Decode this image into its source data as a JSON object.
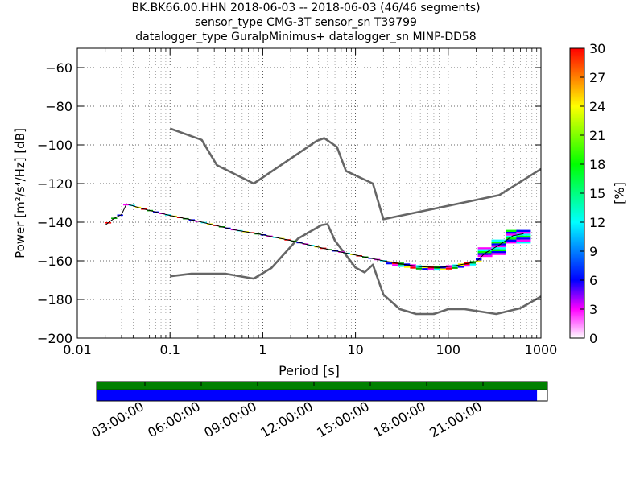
{
  "title_lines": [
    "BK.BK66.00.HHN   2018-06-03 -- 2018-06-03  (46/46 segments)",
    "sensor_type CMG-3T sensor_sn T39799",
    "datalogger_type GuralpMinimus+ datalogger_sn MINP-DD58"
  ],
  "chart_data": {
    "type": "heatmap",
    "xlabel": "Period [s]",
    "ylabel": "Power [m²/s⁴/Hz] [dB]",
    "x_scale": "log",
    "xlim": [
      0.01,
      1000
    ],
    "ylim": [
      -200,
      -50
    ],
    "x_ticks": [
      {
        "value": 0.01,
        "label": "0.01"
      },
      {
        "value": 0.1,
        "label": "0.1"
      },
      {
        "value": 1,
        "label": "1"
      },
      {
        "value": 10,
        "label": "10"
      },
      {
        "value": 100,
        "label": "100"
      },
      {
        "value": 1000,
        "label": "1000"
      }
    ],
    "y_ticks": [
      -60,
      -80,
      -100,
      -120,
      -140,
      -160,
      -180,
      -200
    ],
    "grid": true,
    "colorbar": {
      "label": "[%]",
      "min": 0,
      "max": 30,
      "ticks": [
        0,
        3,
        6,
        9,
        12,
        15,
        18,
        21,
        24,
        27,
        30
      ],
      "colors": [
        "#ffffff",
        "#ff00ff",
        "#0000ff",
        "#00ffff",
        "#00ff00",
        "#ffff00",
        "#ff8000",
        "#ff0000"
      ]
    },
    "noise_models": [
      {
        "points": [
          [
            0.1,
            -91.5
          ],
          [
            0.22,
            -97.4
          ],
          [
            0.32,
            -110.5
          ],
          [
            0.8,
            -120
          ],
          [
            3.8,
            -98
          ],
          [
            4.6,
            -96.5
          ],
          [
            6.3,
            -101
          ],
          [
            7.9,
            -113.5
          ],
          [
            15.4,
            -120
          ],
          [
            20,
            -138.5
          ],
          [
            354.8,
            -126
          ],
          [
            1000,
            -112.5
          ]
        ]
      },
      {
        "points": [
          [
            0.1,
            -168
          ],
          [
            0.17,
            -166.7
          ],
          [
            0.4,
            -166.7
          ],
          [
            0.8,
            -169.2
          ],
          [
            1.24,
            -163.7
          ],
          [
            2.4,
            -148.5
          ],
          [
            4.3,
            -141.5
          ],
          [
            5,
            -141
          ],
          [
            6,
            -149.5
          ],
          [
            10,
            -163.5
          ],
          [
            12.5,
            -166
          ],
          [
            15.4,
            -162
          ],
          [
            20,
            -177.5
          ],
          [
            30,
            -185
          ],
          [
            45,
            -187.5
          ],
          [
            70,
            -187.5
          ],
          [
            100,
            -185
          ],
          [
            150,
            -185
          ],
          [
            330,
            -187.5
          ],
          [
            600,
            -184.5
          ],
          [
            1000,
            -178.5
          ]
        ]
      }
    ],
    "psd_mode": {
      "points": [
        [
          0.02,
          -141.5
        ],
        [
          0.025,
          -138
        ],
        [
          0.03,
          -136
        ],
        [
          0.034,
          -130.5
        ],
        [
          0.05,
          -133
        ],
        [
          0.1,
          -136.5
        ],
        [
          0.2,
          -139.5
        ],
        [
          0.5,
          -144
        ],
        [
          1,
          -146.5
        ],
        [
          2,
          -149.5
        ],
        [
          5,
          -154
        ],
        [
          10,
          -157
        ],
        [
          20,
          -160
        ],
        [
          30,
          -161.5
        ],
        [
          50,
          -163
        ],
        [
          80,
          -163.5
        ],
        [
          120,
          -162.5
        ],
        [
          200,
          -160.5
        ],
        [
          250,
          -156
        ],
        [
          350,
          -152
        ],
        [
          500,
          -147
        ],
        [
          650,
          -146
        ]
      ]
    },
    "psd_spread": [
      {
        "x": 250,
        "low": -158,
        "high": -153
      },
      {
        "x": 350,
        "low": -157,
        "high": -149
      },
      {
        "x": 500,
        "low": -151,
        "high": -144
      },
      {
        "x": 650,
        "low": -151,
        "high": -144
      }
    ]
  },
  "coverage_bar": {
    "tick_labels": [
      "03:00:00",
      "06:00:00",
      "09:00:00",
      "12:00:00",
      "15:00:00",
      "18:00:00",
      "21:00:00"
    ],
    "top_color": "#008000",
    "bottom_color": "#0000ff",
    "fill_fraction": 0.977
  }
}
